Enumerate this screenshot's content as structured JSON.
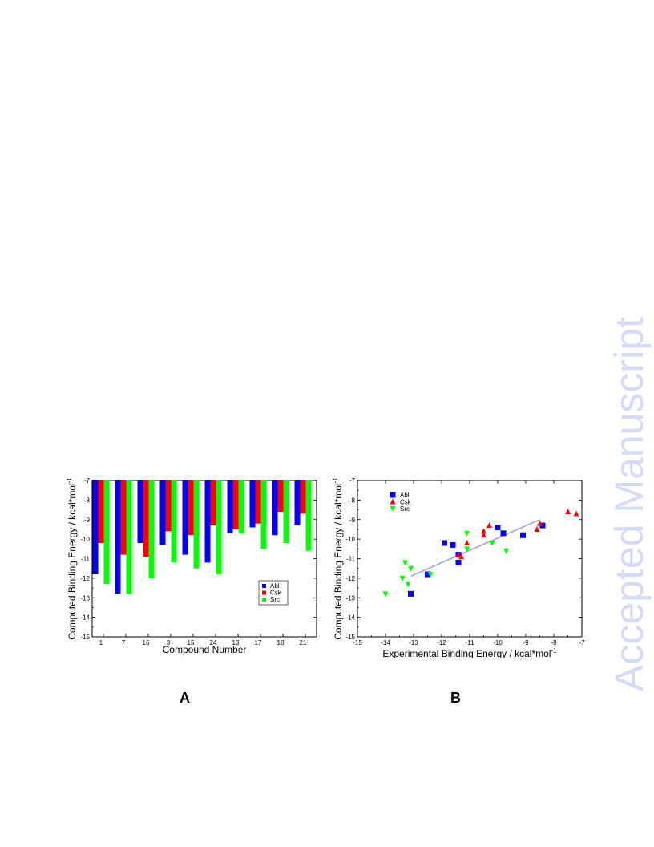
{
  "watermark": {
    "text": "Accepted Manuscript",
    "color": "#d6d9f8"
  },
  "panels": {
    "a_label": "A",
    "b_label": "B"
  },
  "chart_data": [
    {
      "id": "A",
      "type": "bar",
      "xlabel": "Compound Number",
      "ylabel": "Computed Binding  Energy / kcal*mol",
      "ylabel_sup": "-1",
      "categories": [
        "1",
        "7",
        "16",
        "3",
        "15",
        "24",
        "13",
        "17",
        "18",
        "21"
      ],
      "baseline": -7,
      "ylim": [
        -15,
        -7
      ],
      "yticks": [
        -7,
        -8,
        -9,
        -10,
        -11,
        -12,
        -13,
        -14,
        -15
      ],
      "legend_position": "bottom-right",
      "series": [
        {
          "name": "Abl",
          "color": "#0000ff",
          "values": [
            -11.8,
            -12.8,
            -10.2,
            -10.3,
            -10.8,
            -11.2,
            -9.7,
            -9.4,
            -9.8,
            -9.3
          ]
        },
        {
          "name": "Csk",
          "color": "#ff0000",
          "values": [
            -10.2,
            -10.8,
            -10.9,
            -9.6,
            -9.8,
            -9.3,
            -9.5,
            -9.2,
            -8.6,
            -8.7
          ]
        },
        {
          "name": "Src",
          "color": "#00ff00",
          "values": [
            -12.3,
            -12.8,
            -12.0,
            -11.2,
            -11.5,
            -11.8,
            -9.7,
            -10.5,
            -10.2,
            -10.6
          ]
        }
      ]
    },
    {
      "id": "B",
      "type": "scatter",
      "xlabel": "Experimental Binding Energy / kcal*mol",
      "xlabel_sup": "-1",
      "ylabel": "Computed Binding  Energy /  kcal*mol",
      "ylabel_sup": "-1",
      "xlim": [
        -15,
        -7
      ],
      "ylim": [
        -15,
        -7
      ],
      "xticks": [
        -15,
        -14,
        -13,
        -12,
        -11,
        -10,
        -9,
        -8,
        -7
      ],
      "yticks": [
        -7,
        -8,
        -9,
        -10,
        -11,
        -12,
        -13,
        -14,
        -15
      ],
      "legend_position": "top-left",
      "series": [
        {
          "name": "Abl",
          "color": "#0000ff",
          "marker": "square",
          "x": [
            -13.1,
            -12.5,
            -11.9,
            -11.6,
            -11.4,
            -11.4,
            -10.0,
            -9.8,
            -9.1,
            -8.4
          ],
          "y": [
            -12.8,
            -11.8,
            -10.2,
            -10.3,
            -10.8,
            -11.2,
            -9.4,
            -9.7,
            -9.8,
            -9.3
          ]
        },
        {
          "name": "Csk",
          "color": "#ff0000",
          "marker": "triangle-up",
          "x": [
            -11.4,
            -11.3,
            -11.1,
            -10.5,
            -10.5,
            -10.3,
            -8.6,
            -8.5,
            -7.5,
            -7.2
          ],
          "y": [
            -10.8,
            -10.9,
            -10.2,
            -9.6,
            -9.8,
            -9.3,
            -9.5,
            -9.2,
            -8.6,
            -8.7
          ]
        },
        {
          "name": "Src",
          "color": "#00ff00",
          "marker": "triangle-down",
          "x": [
            -14.0,
            -13.4,
            -13.3,
            -13.2,
            -13.1,
            -12.4,
            -11.1,
            -11.1,
            -10.2,
            -9.7
          ],
          "y": [
            -12.8,
            -12.0,
            -11.2,
            -12.3,
            -11.5,
            -11.8,
            -9.7,
            -10.5,
            -10.2,
            -10.6
          ]
        }
      ],
      "fit_line": {
        "color": "#9aa0e8",
        "x": [
          -13.1,
          -8.5
        ],
        "y": [
          -11.9,
          -9.0
        ]
      }
    }
  ]
}
